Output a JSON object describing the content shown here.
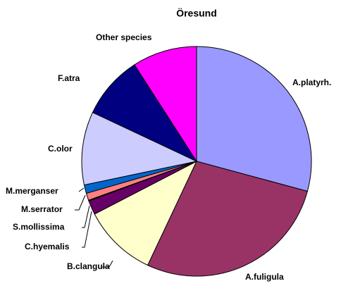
{
  "chart_data": {
    "type": "pie",
    "title": "Öresund",
    "categories": [
      "A.platyrh.",
      "A.fuligula",
      "B.clangula",
      "C.hyemalis",
      "S.mollissima",
      "M.serrator",
      "M.merganser",
      "C.olor",
      "F.atra",
      "Other species"
    ],
    "values": [
      29.2,
      27.8,
      10.4,
      2.0,
      0.1,
      1.0,
      1.2,
      10.3,
      8.9,
      9.1
    ],
    "colors": [
      "#9999ff",
      "#993366",
      "#ffffcc",
      "#660066",
      "#ccffff",
      "#ff8080",
      "#0066cc",
      "#ccccff",
      "#000080",
      "#ff00ff"
    ]
  }
}
